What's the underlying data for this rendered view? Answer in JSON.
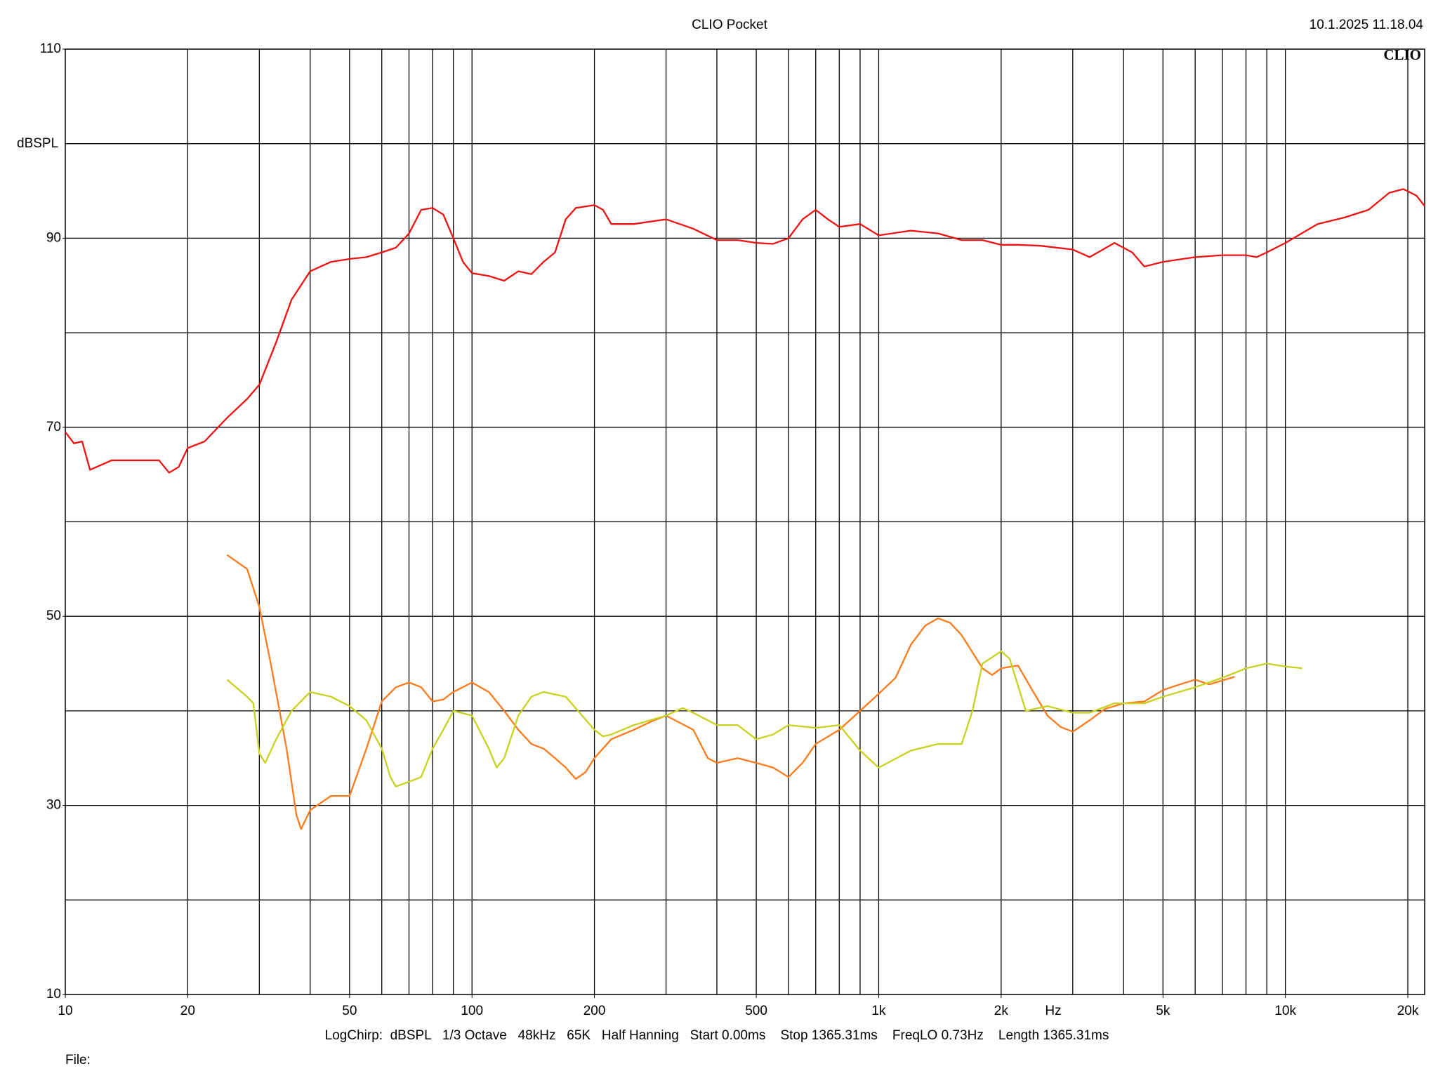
{
  "chart_data": {
    "type": "line",
    "title": "CLIO Pocket",
    "timestamp": "10.1.2025 11.18.04",
    "logo": "CLIO",
    "y_label": "dBSPL",
    "x_label": "Hz",
    "footer": "LogChirp:  dBSPL   1/3 Octave   48kHz   65K   Half Hanning   Start 0.00ms    Stop 1365.31ms    FreqLO 0.73Hz    Length 1365.31ms",
    "file_label": "File:",
    "x_scale": "log",
    "xlim": [
      10,
      22000
    ],
    "ylim": [
      10,
      110
    ],
    "xticks": [
      10,
      20,
      50,
      100,
      200,
      500,
      {
        "value": 1000,
        "label": "1k"
      },
      {
        "value": 2000,
        "label": "2k"
      },
      {
        "value": 5000,
        "label": "5k"
      },
      {
        "value": 10000,
        "label": "10k"
      },
      {
        "value": 20000,
        "label": "20k"
      }
    ],
    "yticks": [
      10,
      30,
      50,
      70,
      90,
      110
    ],
    "xgrid": [
      20,
      30,
      40,
      50,
      60,
      70,
      80,
      90,
      100,
      200,
      300,
      400,
      500,
      600,
      700,
      800,
      900,
      1000,
      2000,
      3000,
      4000,
      5000,
      6000,
      7000,
      8000,
      9000,
      10000,
      20000
    ],
    "ygrid": [
      20,
      30,
      40,
      50,
      60,
      70,
      80,
      90,
      100
    ],
    "series": [
      {
        "color": "#ee1111",
        "x": [
          10,
          10.5,
          11,
          11.5,
          13,
          15,
          17,
          18,
          19,
          20,
          22,
          25,
          28,
          30,
          33,
          36,
          40,
          45,
          50,
          55,
          60,
          65,
          70,
          75,
          80,
          85,
          90,
          95,
          100,
          110,
          120,
          130,
          140,
          150,
          160,
          170,
          180,
          200,
          210,
          220,
          250,
          300,
          350,
          400,
          450,
          500,
          550,
          600,
          650,
          700,
          750,
          800,
          900,
          1000,
          1200,
          1400,
          1600,
          1800,
          2000,
          2200,
          2500,
          3000,
          3300,
          3800,
          4200,
          4500,
          5000,
          6000,
          7000,
          8000,
          8500,
          9000,
          10000,
          12000,
          14000,
          16000,
          18000,
          19500,
          21000,
          22000
        ],
        "values": [
          69.5,
          68.3,
          68.5,
          65.5,
          66.5,
          66.5,
          66.5,
          65.2,
          65.8,
          67.8,
          68.5,
          71,
          73,
          74.5,
          79,
          83.5,
          86.5,
          87.5,
          87.8,
          88,
          88.5,
          89,
          90.5,
          93,
          93.2,
          92.5,
          90,
          87.5,
          86.3,
          86,
          85.5,
          86.5,
          86.2,
          87.5,
          88.5,
          92,
          93.2,
          93.5,
          93,
          91.5,
          91.5,
          92,
          91,
          89.8,
          89.8,
          89.5,
          89.4,
          90,
          92,
          93,
          92,
          91.2,
          91.5,
          90.3,
          90.8,
          90.5,
          89.8,
          89.8,
          89.3,
          89.3,
          89.2,
          88.8,
          88,
          89.5,
          88.5,
          87,
          87.5,
          88,
          88.2,
          88.2,
          88,
          88.5,
          89.5,
          91.5,
          92.2,
          93,
          94.8,
          95.2,
          94.5,
          93.4
        ]
      },
      {
        "color": "#ff7a1a",
        "x": [
          25,
          28,
          30,
          32,
          35,
          37,
          38,
          40,
          45,
          50,
          55,
          60,
          65,
          70,
          75,
          80,
          85,
          90,
          100,
          110,
          120,
          130,
          140,
          150,
          160,
          170,
          180,
          190,
          200,
          220,
          250,
          280,
          300,
          350,
          380,
          400,
          450,
          500,
          550,
          600,
          650,
          700,
          800,
          900,
          1000,
          1100,
          1200,
          1300,
          1400,
          1500,
          1600,
          1800,
          1900,
          2000,
          2200,
          2400,
          2600,
          2800,
          3000,
          3300,
          3600,
          4000,
          4500,
          5000,
          5500,
          6000,
          6500,
          7500
        ],
        "values": [
          56.5,
          55,
          51,
          45,
          36,
          29,
          27.5,
          29.5,
          31,
          31,
          36,
          41,
          42.5,
          43,
          42.5,
          41,
          41.2,
          42,
          43,
          42,
          40,
          38,
          36.5,
          36,
          35,
          34,
          32.8,
          33.5,
          35,
          37,
          38,
          39,
          39.5,
          38,
          35,
          34.5,
          35,
          34.5,
          34,
          33,
          34.5,
          36.5,
          38,
          40,
          41.8,
          43.5,
          47,
          49,
          49.8,
          49.3,
          48,
          44.5,
          43.8,
          44.5,
          44.8,
          42,
          39.5,
          38.3,
          37.8,
          39,
          40.2,
          40.8,
          41,
          42.2,
          42.8,
          43.3,
          42.8,
          43.6
        ]
      },
      {
        "color": "#c8d21e",
        "x": [
          25,
          28,
          29,
          30,
          31,
          33,
          36,
          40,
          45,
          50,
          55,
          60,
          63,
          65,
          70,
          75,
          80,
          85,
          90,
          100,
          110,
          115,
          120,
          130,
          140,
          150,
          170,
          200,
          210,
          220,
          250,
          300,
          330,
          350,
          400,
          450,
          500,
          550,
          600,
          700,
          800,
          900,
          1000,
          1200,
          1400,
          1600,
          1700,
          1800,
          2000,
          2100,
          2300,
          2600,
          3000,
          3300,
          3800,
          4500,
          5000,
          6000,
          7000,
          8000,
          9000,
          10000,
          11000
        ],
        "values": [
          43.3,
          41.5,
          40.8,
          35.5,
          34.5,
          37,
          40,
          42,
          41.5,
          40.5,
          39,
          36,
          33,
          32,
          32.5,
          33,
          36,
          38,
          40,
          39.5,
          36,
          34,
          35,
          39.5,
          41.5,
          42,
          41.5,
          38,
          37.3,
          37.5,
          38.5,
          39.5,
          40.3,
          39.8,
          38.5,
          38.5,
          37,
          37.5,
          38.5,
          38.2,
          38.5,
          35.8,
          34,
          35.8,
          36.5,
          36.5,
          40,
          45,
          46.3,
          45.5,
          40,
          40.5,
          39.8,
          39.8,
          40.8,
          40.8,
          41.5,
          42.5,
          43.5,
          44.5,
          45,
          44.7,
          44.5
        ]
      }
    ]
  }
}
